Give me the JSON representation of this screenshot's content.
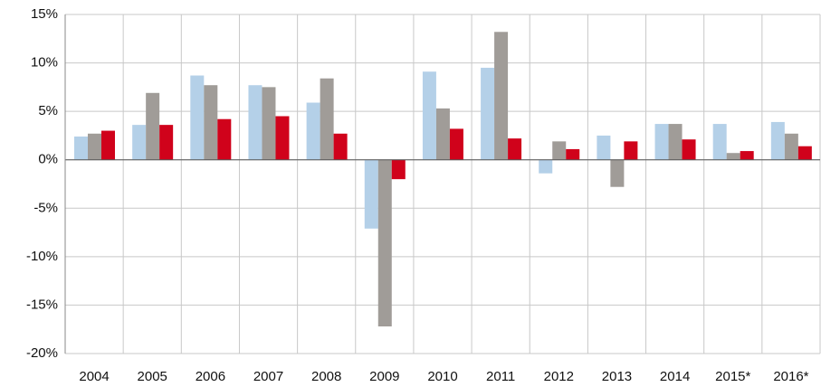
{
  "chart_data": {
    "type": "bar",
    "categories": [
      "2004",
      "2005",
      "2006",
      "2007",
      "2008",
      "2009",
      "2010",
      "2011",
      "2012",
      "2013",
      "2014",
      "2015*",
      "2016*"
    ],
    "series": [
      {
        "color": "#b4d0e8",
        "values": [
          2.4,
          3.6,
          8.7,
          7.7,
          5.9,
          -7.1,
          9.1,
          9.5,
          -1.4,
          2.5,
          3.7,
          3.7,
          3.9
        ]
      },
      {
        "color": "#a09c98",
        "values": [
          2.7,
          6.9,
          7.7,
          7.5,
          8.4,
          -17.2,
          5.3,
          13.2,
          1.9,
          -2.8,
          3.7,
          0.7,
          2.7
        ]
      },
      {
        "color": "#d0021b",
        "values": [
          3.0,
          3.6,
          4.2,
          4.5,
          2.7,
          -2.0,
          3.2,
          2.2,
          1.1,
          1.9,
          2.1,
          0.9,
          1.4
        ]
      }
    ],
    "ylim": [
      -20,
      15
    ],
    "yticks": [
      {
        "value": -20,
        "label": "-20%"
      },
      {
        "value": -15,
        "label": "-15%"
      },
      {
        "value": -10,
        "label": "-10%"
      },
      {
        "value": -5,
        "label": "-5%"
      },
      {
        "value": 0,
        "label": "0%"
      },
      {
        "value": 5,
        "label": "5%"
      },
      {
        "value": 10,
        "label": "10%"
      },
      {
        "value": 15,
        "label": "15%"
      }
    ],
    "grid": true
  }
}
